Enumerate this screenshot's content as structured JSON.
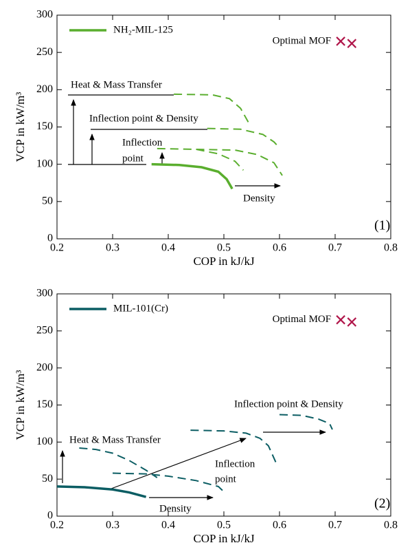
{
  "chart_data": [
    {
      "type": "line",
      "xlabel": "COP in kJ/kJ",
      "ylabel": "VCP in kW/m³",
      "panel_label": "(1)",
      "xlim": [
        0.2,
        0.8
      ],
      "xticks": [
        0.2,
        0.3,
        0.4,
        0.5,
        0.6,
        0.7,
        0.8
      ],
      "ylim": [
        0,
        300
      ],
      "yticks": [
        0,
        50,
        100,
        150,
        200,
        250,
        300
      ],
      "legend": "upper left",
      "series": [
        {
          "name": "NH₂-MIL-125",
          "color": "#5aae2e",
          "style": "solid",
          "x": [
            0.37,
            0.42,
            0.46,
            0.49,
            0.505,
            0.515
          ],
          "values": [
            100,
            99,
            96,
            90,
            80,
            67
          ]
        },
        {
          "color": "#5aae2e",
          "style": "dashed",
          "x": [
            0.41,
            0.48,
            0.51,
            0.53,
            0.545
          ],
          "values": [
            194,
            193,
            188,
            175,
            155
          ]
        },
        {
          "color": "#5aae2e",
          "style": "dashed",
          "x": [
            0.47,
            0.53,
            0.57,
            0.59,
            0.6
          ],
          "values": [
            148,
            147,
            140,
            130,
            122
          ]
        },
        {
          "color": "#5aae2e",
          "style": "dashed",
          "x": [
            0.38,
            0.45,
            0.49,
            0.52,
            0.535
          ],
          "values": [
            121,
            120,
            114,
            104,
            92
          ]
        },
        {
          "color": "#5aae2e",
          "style": "dashed",
          "x": [
            0.45,
            0.52,
            0.56,
            0.59,
            0.605
          ],
          "values": [
            120,
            119,
            113,
            102,
            85
          ]
        },
        {
          "name": "Optimal MOF",
          "color": "#b0164a",
          "style": "marker",
          "x": [
            0.71,
            0.73
          ],
          "values": [
            265,
            262
          ]
        }
      ],
      "annotations": {
        "heat_mass": "Heat & Mass Transfer",
        "inflection_density": "Inflection point & Density",
        "inflection": [
          "Inflection",
          "point"
        ],
        "density": "Density"
      }
    },
    {
      "type": "line",
      "xlabel": "COP in kJ/kJ",
      "ylabel": "VCP in kW/m³",
      "panel_label": "(2)",
      "xlim": [
        0.2,
        0.8
      ],
      "xticks": [
        0.2,
        0.3,
        0.4,
        0.5,
        0.6,
        0.7,
        0.8
      ],
      "ylim": [
        0,
        300
      ],
      "yticks": [
        0,
        50,
        100,
        150,
        200,
        250,
        300
      ],
      "legend": "upper left",
      "series": [
        {
          "name": "MIL-101(Cr)",
          "color": "#0b5d63",
          "style": "solid",
          "x": [
            0.2,
            0.25,
            0.3,
            0.33,
            0.36
          ],
          "values": [
            40,
            39,
            36,
            32,
            26
          ]
        },
        {
          "color": "#0b5d63",
          "style": "dashed",
          "x": [
            0.24,
            0.27,
            0.3,
            0.33,
            0.36,
            0.38
          ],
          "values": [
            92,
            90,
            85,
            75,
            62,
            52
          ]
        },
        {
          "color": "#0b5d63",
          "style": "dashed",
          "x": [
            0.3,
            0.36,
            0.4,
            0.45,
            0.49,
            0.5
          ],
          "values": [
            58,
            57,
            54,
            48,
            40,
            33
          ]
        },
        {
          "color": "#0b5d63",
          "style": "dashed",
          "x": [
            0.44,
            0.5,
            0.54,
            0.565,
            0.58,
            0.595
          ],
          "values": [
            116,
            115,
            112,
            105,
            95,
            70
          ]
        },
        {
          "color": "#0b5d63",
          "style": "dashed",
          "x": [
            0.6,
            0.64,
            0.67,
            0.69,
            0.695
          ],
          "values": [
            137,
            136,
            131,
            125,
            117
          ]
        },
        {
          "name": "Optimal MOF",
          "color": "#b0164a",
          "style": "marker",
          "x": [
            0.71,
            0.73
          ],
          "values": [
            265,
            262
          ]
        }
      ],
      "annotations": {
        "heat_mass": "Heat & Mass Transfer",
        "inflection_density": "Inflection point & Density",
        "inflection": [
          "Inflection",
          "point"
        ],
        "density": "Density"
      }
    }
  ]
}
